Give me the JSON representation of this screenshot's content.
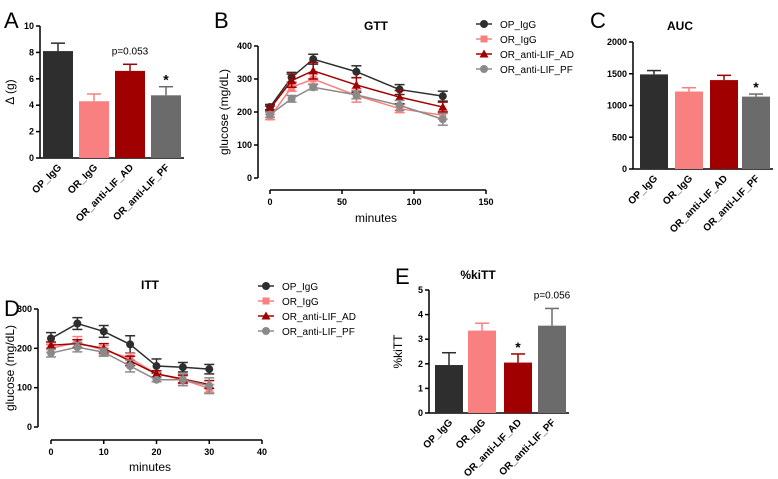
{
  "colors": {
    "OP_IgG": "#2e2e2e",
    "OR_IgG": "#f98080",
    "OR_anti-LIF_AD": "#a00000",
    "OR_anti-LIF_PF": "#6b6b6b",
    "PF_line": "#8a8a8a"
  },
  "chart_data": [
    {
      "id": "A",
      "panel_label": "A",
      "type": "bar",
      "title": "",
      "ylabel": "Δ (g)",
      "ylim": [
        0,
        10
      ],
      "yticks": [
        0,
        2,
        4,
        6,
        8,
        10
      ],
      "categories": [
        "OP_IgG",
        "OR_IgG",
        "OR_anti-LIF_AD",
        "OR_anti-LIF_PF"
      ],
      "values": [
        8.1,
        4.3,
        6.6,
        4.75
      ],
      "errors": [
        0.6,
        0.55,
        0.5,
        0.65
      ],
      "annotations": [
        "",
        "",
        "p=0.053",
        "*"
      ]
    },
    {
      "id": "B",
      "panel_label": "B",
      "type": "line",
      "title": "GTT",
      "xlabel": "minutes",
      "ylabel": "glucose (mg/dL)",
      "xlim": [
        0,
        150
      ],
      "xticks": [
        0,
        50,
        100,
        150
      ],
      "ylim": [
        0,
        400
      ],
      "yticks": [
        0,
        100,
        200,
        300,
        400
      ],
      "x": [
        0,
        15,
        30,
        60,
        90,
        120
      ],
      "series": [
        {
          "name": "OP_IgG",
          "marker": "circle",
          "values": [
            215,
            305,
            360,
            322,
            268,
            248
          ],
          "errors": [
            8,
            15,
            15,
            18,
            15,
            15
          ]
        },
        {
          "name": "OR_IgG",
          "marker": "square",
          "values": [
            185,
            275,
            300,
            250,
            210,
            190
          ],
          "errors": [
            8,
            12,
            15,
            20,
            12,
            12
          ]
        },
        {
          "name": "OR_anti-LIF_AD",
          "marker": "triangle",
          "values": [
            210,
            295,
            325,
            282,
            245,
            215
          ],
          "errors": [
            8,
            20,
            25,
            22,
            20,
            15
          ]
        },
        {
          "name": "OR_anti-LIF_PF",
          "marker": "circle",
          "values": [
            192,
            240,
            275,
            252,
            220,
            178
          ],
          "errors": [
            8,
            10,
            8,
            12,
            15,
            18
          ]
        }
      ],
      "legend": "right"
    },
    {
      "id": "C",
      "panel_label": "C",
      "type": "bar",
      "title": "AUC",
      "ylabel": "",
      "ylim": [
        0,
        2000
      ],
      "yticks": [
        0,
        500,
        1000,
        1500,
        2000
      ],
      "categories": [
        "OP_IgG",
        "OR_IgG",
        "OR_anti-LIF_AD",
        "OR_anti-LIF_PF"
      ],
      "values": [
        1490,
        1220,
        1400,
        1140
      ],
      "errors": [
        60,
        60,
        75,
        40
      ],
      "annotations": [
        "",
        "",
        "",
        "*"
      ]
    },
    {
      "id": "D",
      "panel_label": "D",
      "type": "line",
      "title": "ITT",
      "xlabel": "minutes",
      "ylabel": "glucose (mg/dL)",
      "xlim": [
        0,
        40
      ],
      "xticks": [
        0,
        10,
        20,
        30,
        40
      ],
      "ylim": [
        0,
        300
      ],
      "yticks": [
        0,
        100,
        200,
        300
      ],
      "x": [
        0,
        5,
        10,
        15,
        20,
        25,
        30
      ],
      "series": [
        {
          "name": "OP_IgG",
          "marker": "circle",
          "values": [
            225,
            263,
            243,
            210,
            155,
            152,
            147
          ],
          "errors": [
            15,
            15,
            15,
            22,
            18,
            12,
            12
          ]
        },
        {
          "name": "OR_IgG",
          "marker": "square",
          "values": [
            200,
            215,
            195,
            175,
            135,
            120,
            98
          ],
          "errors": [
            10,
            15,
            12,
            12,
            8,
            10,
            10
          ]
        },
        {
          "name": "OR_anti-LIF_AD",
          "marker": "triangle",
          "values": [
            208,
            212,
            200,
            168,
            135,
            122,
            108
          ],
          "errors": [
            8,
            10,
            12,
            12,
            8,
            10,
            10
          ]
        },
        {
          "name": "OR_anti-LIF_PF",
          "marker": "circle",
          "values": [
            188,
            203,
            190,
            155,
            120,
            120,
            105
          ],
          "errors": [
            10,
            12,
            10,
            15,
            5,
            15,
            20
          ]
        }
      ],
      "legend": "right"
    },
    {
      "id": "E",
      "panel_label": "E",
      "type": "bar",
      "title": "%kiTT",
      "ylabel": "%kiTT",
      "ylim": [
        0,
        5
      ],
      "yticks": [
        0,
        1,
        2,
        3,
        4,
        5
      ],
      "categories": [
        "OP_IgG",
        "OR_IgG",
        "OR_anti-LIF_AD",
        "OR_anti-LIF_PF"
      ],
      "values": [
        1.95,
        3.35,
        2.05,
        3.55
      ],
      "errors": [
        0.5,
        0.3,
        0.35,
        0.7
      ],
      "annotations": [
        "",
        "",
        "*",
        "p=0.056"
      ]
    }
  ]
}
